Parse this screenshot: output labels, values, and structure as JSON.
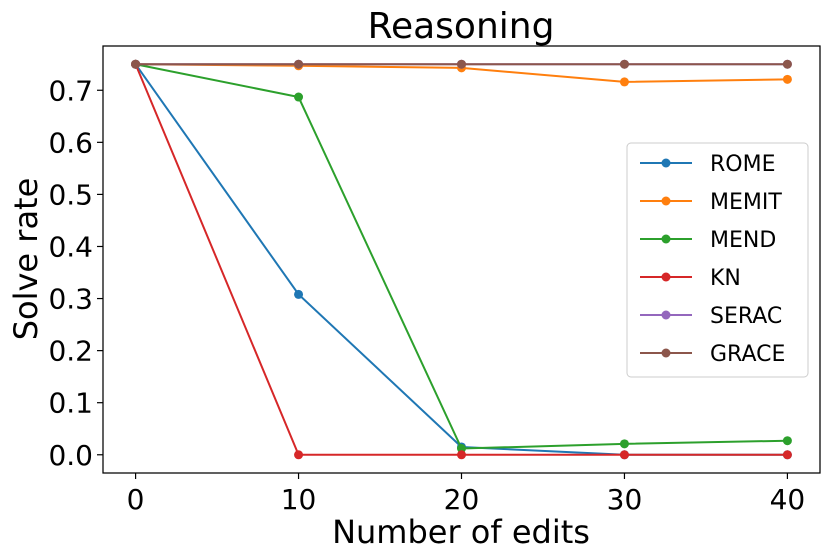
{
  "chart_data": {
    "type": "line",
    "title": "Reasoning",
    "xlabel": "Number of edits",
    "ylabel": "Solve rate",
    "x": [
      0,
      10,
      20,
      30,
      40
    ],
    "xlim": [
      -2,
      42
    ],
    "ylim": [
      -0.035,
      0.785
    ],
    "xticks": [
      0,
      10,
      20,
      30,
      40
    ],
    "xtick_labels": [
      "0",
      "10",
      "20",
      "30",
      "40"
    ],
    "yticks": [
      0.0,
      0.1,
      0.2,
      0.3,
      0.4,
      0.5,
      0.6,
      0.7
    ],
    "ytick_labels": [
      "0.0",
      "0.1",
      "0.2",
      "0.3",
      "0.4",
      "0.5",
      "0.6",
      "0.7"
    ],
    "grid": false,
    "legend_position": "center-right",
    "series": [
      {
        "name": "ROME",
        "color": "#1f77b4",
        "values": [
          0.75,
          0.308,
          0.015,
          0.0,
          0.0
        ]
      },
      {
        "name": "MEMIT",
        "color": "#ff7f0e",
        "values": [
          0.75,
          0.747,
          0.743,
          0.716,
          0.721
        ]
      },
      {
        "name": "MEND",
        "color": "#2ca02c",
        "values": [
          0.75,
          0.687,
          0.012,
          0.021,
          0.027
        ]
      },
      {
        "name": "KN",
        "color": "#d62728",
        "values": [
          0.75,
          0.0,
          0.0,
          0.0,
          0.0
        ]
      },
      {
        "name": "SERAC",
        "color": "#9467bd",
        "values": [
          0.75,
          0.75,
          0.75,
          0.75,
          0.75
        ]
      },
      {
        "name": "GRACE",
        "color": "#8c564b",
        "values": [
          0.75,
          0.75,
          0.75,
          0.75,
          0.75
        ]
      }
    ]
  }
}
